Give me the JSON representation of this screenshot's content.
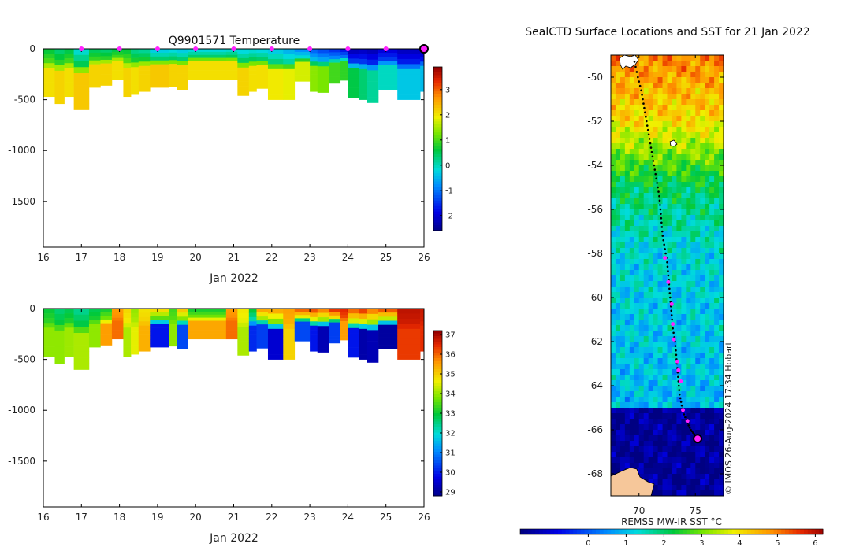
{
  "chart_data": [
    {
      "type": "heatmap",
      "title": "Q9901571  Temperature",
      "xlabel": "Jan 2022",
      "ylabel": "",
      "x_ticks": [
        16,
        17,
        18,
        19,
        20,
        21,
        22,
        23,
        24,
        25,
        26
      ],
      "x_tick_labels": [
        "16",
        "17",
        "18",
        "19",
        "20",
        "21",
        "22",
        "23",
        "24",
        "25",
        "26"
      ],
      "xlim": [
        16,
        26
      ],
      "y_ticks": [
        0,
        -500,
        -1000,
        -1500
      ],
      "y_tick_labels": [
        "0",
        "-500",
        "-1000",
        "-1500"
      ],
      "ylim": [
        -1950,
        0
      ],
      "colorbar": {
        "ticks": [
          3,
          2,
          1,
          0,
          -1,
          -2
        ],
        "tick_labels": [
          "3",
          "2",
          "1",
          "0",
          "-1",
          "-2"
        ],
        "range": [
          -2.6,
          3.9
        ]
      },
      "profile_markers": [
        17,
        18,
        19,
        20,
        21,
        22,
        23,
        24,
        25
      ],
      "current_marker": 26,
      "profiles": [
        {
          "x0": 16.0,
          "x1": 16.3,
          "depth": 470,
          "surface": 0.6,
          "deep": 2.1
        },
        {
          "x0": 16.3,
          "x1": 16.55,
          "depth": 540,
          "surface": 0.3,
          "deep": 2.2
        },
        {
          "x0": 16.55,
          "x1": 16.8,
          "depth": 470,
          "surface": 0.5,
          "deep": 2.1
        },
        {
          "x0": 16.8,
          "x1": 17.2,
          "depth": 600,
          "surface": -0.2,
          "deep": 2.3
        },
        {
          "x0": 17.2,
          "x1": 17.5,
          "depth": 380,
          "surface": 0.4,
          "deep": 2.2
        },
        {
          "x0": 17.5,
          "x1": 17.8,
          "depth": 360,
          "surface": 0.3,
          "deep": 2.2
        },
        {
          "x0": 17.8,
          "x1": 18.1,
          "depth": 300,
          "surface": 0.5,
          "deep": 2.1
        },
        {
          "x0": 18.1,
          "x1": 18.3,
          "depth": 470,
          "surface": 0.6,
          "deep": 2.2
        },
        {
          "x0": 18.3,
          "x1": 18.5,
          "depth": 450,
          "surface": 0.2,
          "deep": 2.1
        },
        {
          "x0": 18.5,
          "x1": 18.8,
          "depth": 420,
          "surface": 0.1,
          "deep": 2.2
        },
        {
          "x0": 18.8,
          "x1": 19.3,
          "depth": 380,
          "surface": -0.4,
          "deep": 2.3
        },
        {
          "x0": 19.3,
          "x1": 19.5,
          "depth": 370,
          "surface": -0.3,
          "deep": 2.2
        },
        {
          "x0": 19.5,
          "x1": 19.8,
          "depth": 400,
          "surface": -0.4,
          "deep": 2.2
        },
        {
          "x0": 19.8,
          "x1": 20.8,
          "depth": 300,
          "surface": -0.3,
          "deep": 2.1
        },
        {
          "x0": 20.8,
          "x1": 21.1,
          "depth": 300,
          "surface": -0.2,
          "deep": 2.1
        },
        {
          "x0": 21.1,
          "x1": 21.4,
          "depth": 460,
          "surface": -0.3,
          "deep": 2.2
        },
        {
          "x0": 21.4,
          "x1": 21.6,
          "depth": 420,
          "surface": -0.2,
          "deep": 2.1
        },
        {
          "x0": 21.6,
          "x1": 21.9,
          "depth": 390,
          "surface": -0.3,
          "deep": 2.1
        },
        {
          "x0": 21.9,
          "x1": 22.3,
          "depth": 500,
          "surface": -0.4,
          "deep": 2.0
        },
        {
          "x0": 22.3,
          "x1": 22.6,
          "depth": 500,
          "surface": -0.6,
          "deep": 1.9
        },
        {
          "x0": 22.6,
          "x1": 23.0,
          "depth": 320,
          "surface": -0.9,
          "deep": 1.8
        },
        {
          "x0": 23.0,
          "x1": 23.2,
          "depth": 420,
          "surface": -1.2,
          "deep": 1.4
        },
        {
          "x0": 23.2,
          "x1": 23.5,
          "depth": 430,
          "surface": -1.4,
          "deep": 1.3
        },
        {
          "x0": 23.5,
          "x1": 23.8,
          "depth": 340,
          "surface": -1.6,
          "deep": 1.0
        },
        {
          "x0": 23.8,
          "x1": 24.0,
          "depth": 310,
          "surface": -1.8,
          "deep": 0.9
        },
        {
          "x0": 24.0,
          "x1": 24.3,
          "depth": 480,
          "surface": -2.3,
          "deep": 0.6
        },
        {
          "x0": 24.3,
          "x1": 24.5,
          "depth": 500,
          "surface": -2.2,
          "deep": 0.4
        },
        {
          "x0": 24.5,
          "x1": 24.8,
          "depth": 530,
          "surface": -2.3,
          "deep": 0.2
        },
        {
          "x0": 24.8,
          "x1": 25.3,
          "depth": 400,
          "surface": -2.0,
          "deep": 0.0
        },
        {
          "x0": 25.3,
          "x1": 25.9,
          "depth": 500,
          "surface": -2.2,
          "deep": -0.3
        },
        {
          "x0": 25.9,
          "x1": 26.0,
          "depth": 420,
          "surface": -2.3,
          "deep": -0.4
        }
      ]
    },
    {
      "type": "heatmap",
      "title": "",
      "xlabel": "Jan 2022",
      "ylabel": "",
      "x_ticks": [
        16,
        17,
        18,
        19,
        20,
        21,
        22,
        23,
        24,
        25,
        26
      ],
      "x_tick_labels": [
        "16",
        "17",
        "18",
        "19",
        "20",
        "21",
        "22",
        "23",
        "24",
        "25",
        "26"
      ],
      "xlim": [
        16,
        26
      ],
      "y_ticks": [
        0,
        -500,
        -1000,
        -1500
      ],
      "y_tick_labels": [
        "0",
        "-500",
        "-1000",
        "-1500"
      ],
      "ylim": [
        -1950,
        0
      ],
      "colorbar": {
        "ticks": [
          37,
          36,
          35,
          34,
          33,
          32,
          31,
          30,
          29
        ],
        "tick_labels": [
          "37",
          "36",
          "35",
          "34",
          "33",
          "32",
          "31",
          "30",
          "29"
        ],
        "range": [
          28.8,
          37.2
        ]
      },
      "profiles": [
        {
          "x0": 16.0,
          "x1": 16.3,
          "depth": 470,
          "surface": 33.0,
          "deep": 34.0
        },
        {
          "x0": 16.3,
          "x1": 16.55,
          "depth": 540,
          "surface": 32.6,
          "deep": 34.0
        },
        {
          "x0": 16.55,
          "x1": 16.8,
          "depth": 470,
          "surface": 32.8,
          "deep": 34.1
        },
        {
          "x0": 16.8,
          "x1": 17.2,
          "depth": 600,
          "surface": 32.4,
          "deep": 34.2
        },
        {
          "x0": 17.2,
          "x1": 17.5,
          "depth": 380,
          "surface": 32.8,
          "deep": 34.0
        },
        {
          "x0": 17.5,
          "x1": 17.8,
          "depth": 360,
          "surface": 33.0,
          "deep": 35.6
        },
        {
          "x0": 17.8,
          "x1": 18.1,
          "depth": 300,
          "surface": 35.6,
          "deep": 36.0
        },
        {
          "x0": 18.1,
          "x1": 18.3,
          "depth": 470,
          "surface": 35.0,
          "deep": 34.2
        },
        {
          "x0": 18.3,
          "x1": 18.5,
          "depth": 450,
          "surface": 34.0,
          "deep": 34.6
        },
        {
          "x0": 18.5,
          "x1": 18.8,
          "depth": 420,
          "surface": 34.8,
          "deep": 35.4
        },
        {
          "x0": 18.8,
          "x1": 19.3,
          "depth": 380,
          "surface": 35.2,
          "deep": 30.0
        },
        {
          "x0": 19.3,
          "x1": 19.5,
          "depth": 370,
          "surface": 33.4,
          "deep": 34.0
        },
        {
          "x0": 19.5,
          "x1": 19.8,
          "depth": 400,
          "surface": 35.4,
          "deep": 30.5
        },
        {
          "x0": 19.8,
          "x1": 20.8,
          "depth": 300,
          "surface": 33.0,
          "deep": 35.5
        },
        {
          "x0": 20.8,
          "x1": 21.1,
          "depth": 300,
          "surface": 35.6,
          "deep": 36.0
        },
        {
          "x0": 21.1,
          "x1": 21.4,
          "depth": 460,
          "surface": 34.8,
          "deep": 34.2
        },
        {
          "x0": 21.4,
          "x1": 21.6,
          "depth": 420,
          "surface": 33.2,
          "deep": 30.2
        },
        {
          "x0": 21.6,
          "x1": 21.9,
          "depth": 390,
          "surface": 35.8,
          "deep": 30.4
        },
        {
          "x0": 21.9,
          "x1": 22.3,
          "depth": 500,
          "surface": 35.8,
          "deep": 29.6
        },
        {
          "x0": 22.3,
          "x1": 22.6,
          "depth": 500,
          "surface": 35.6,
          "deep": 35.0
        },
        {
          "x0": 22.6,
          "x1": 23.0,
          "depth": 320,
          "surface": 36.4,
          "deep": 30.5
        },
        {
          "x0": 23.0,
          "x1": 23.2,
          "depth": 420,
          "surface": 36.6,
          "deep": 30.0
        },
        {
          "x0": 23.2,
          "x1": 23.5,
          "depth": 430,
          "surface": 36.2,
          "deep": 29.3
        },
        {
          "x0": 23.5,
          "x1": 23.8,
          "depth": 340,
          "surface": 36.8,
          "deep": 30.4
        },
        {
          "x0": 23.8,
          "x1": 24.0,
          "depth": 310,
          "surface": 36.6,
          "deep": 35.6
        },
        {
          "x0": 24.0,
          "x1": 24.3,
          "depth": 480,
          "surface": 36.4,
          "deep": 30.0
        },
        {
          "x0": 24.3,
          "x1": 24.5,
          "depth": 500,
          "surface": 36.8,
          "deep": 29.2
        },
        {
          "x0": 24.5,
          "x1": 24.8,
          "depth": 530,
          "surface": 36.2,
          "deep": 29.3
        },
        {
          "x0": 24.8,
          "x1": 25.3,
          "depth": 400,
          "surface": 36.6,
          "deep": 29.1
        },
        {
          "x0": 25.3,
          "x1": 25.9,
          "depth": 500,
          "surface": 36.9,
          "deep": 36.4
        },
        {
          "x0": 25.9,
          "x1": 26.0,
          "depth": 420,
          "surface": 36.8,
          "deep": 36.5
        }
      ]
    },
    {
      "type": "heatmap",
      "title": "SealCTD Surface Locations and SST for 21 Jan 2022",
      "xlabel": "",
      "ylabel": "",
      "xlim": [
        67.5,
        77.5
      ],
      "ylim": [
        -69.0,
        -49.0
      ],
      "x_ticks": [
        70,
        75
      ],
      "x_tick_labels": [
        "70",
        "75"
      ],
      "y_ticks": [
        -50,
        -52,
        -54,
        -56,
        -58,
        -60,
        -62,
        -64,
        -66,
        -68
      ],
      "y_tick_labels": [
        "-50",
        "-52",
        "-54",
        "-56",
        "-58",
        "-60",
        "-62",
        "-64",
        "-66",
        "-68"
      ],
      "colorbar": {
        "label": "REMSS MW-IR SST °C",
        "ticks": [
          0,
          1,
          2,
          3,
          4,
          5,
          6
        ],
        "tick_labels": [
          "0",
          "1",
          "2",
          "3",
          "4",
          "5",
          "6"
        ],
        "range": [
          -1.8,
          6.2
        ]
      },
      "credit": "© IMOS 26-Aug-2024 17:34 Hobart",
      "track_lon": [
        69.6,
        69.9,
        70.2,
        70.4,
        70.6,
        70.8,
        71.0,
        71.2,
        71.4,
        71.6,
        71.8,
        71.9,
        72.0,
        72.1,
        72.3,
        72.5,
        72.6,
        72.7,
        72.8,
        72.9,
        73.0,
        73.2,
        73.3,
        73.4,
        73.5,
        73.6,
        73.8,
        74.0,
        74.3,
        74.6,
        74.9,
        75.2
      ],
      "track_lat": [
        -49.3,
        -50.0,
        -50.6,
        -51.2,
        -51.8,
        -52.4,
        -53.0,
        -53.6,
        -54.2,
        -54.8,
        -55.4,
        -56.0,
        -56.6,
        -57.2,
        -57.8,
        -58.4,
        -59.0,
        -59.6,
        -60.2,
        -60.8,
        -61.4,
        -62.0,
        -62.6,
        -63.2,
        -63.8,
        -64.4,
        -64.9,
        -65.3,
        -65.7,
        -66.0,
        -66.2,
        -66.4
      ],
      "daily_positions_lon": [
        72.3,
        72.6,
        72.9,
        73.0,
        73.1,
        73.4,
        73.5,
        73.7,
        73.9,
        74.3
      ],
      "daily_positions_lat": [
        -58.2,
        -59.3,
        -60.3,
        -61.2,
        -61.9,
        -62.9,
        -63.3,
        -63.8,
        -65.1,
        -65.6
      ],
      "current_position": {
        "lon": 75.2,
        "lat": -66.4
      }
    }
  ]
}
